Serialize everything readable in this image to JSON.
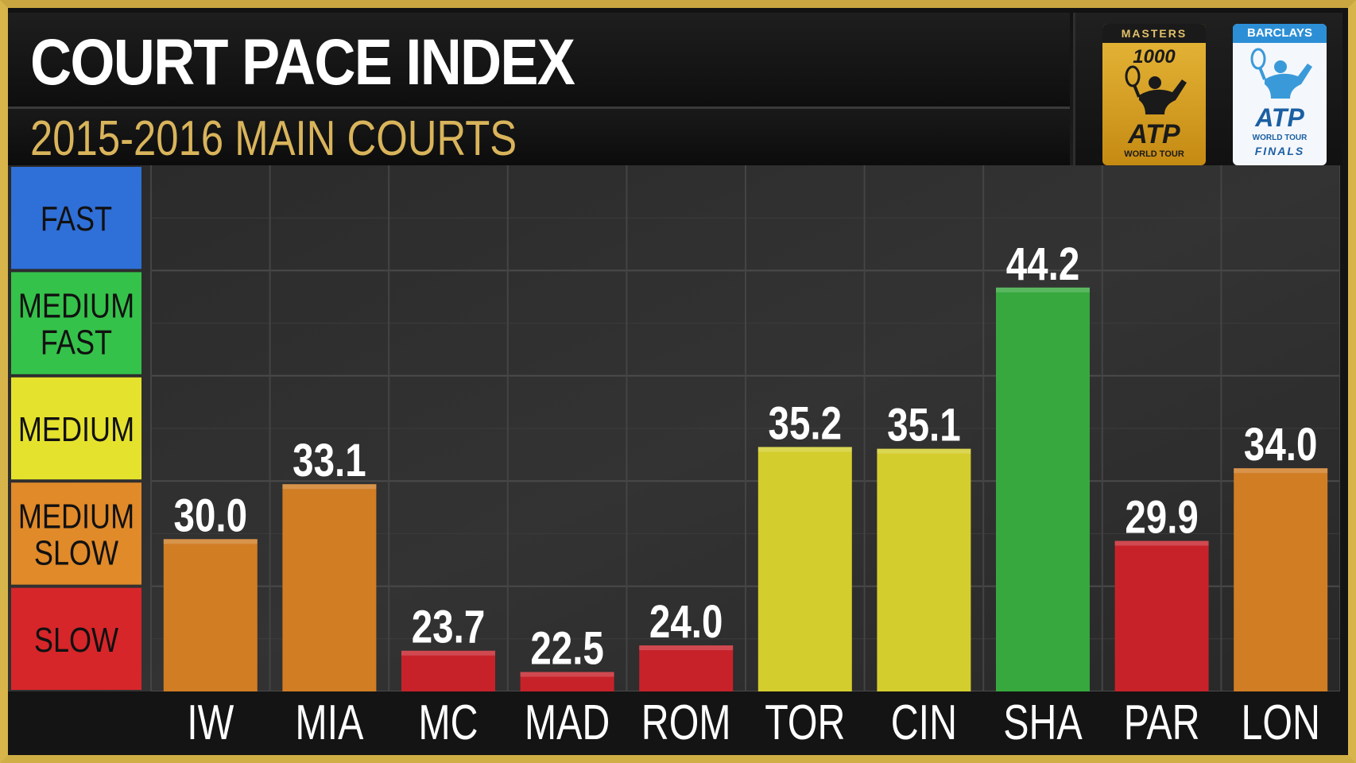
{
  "header": {
    "title": "COURT PACE INDEX",
    "subtitle": "2015-2016 MAIN COURTS"
  },
  "logos": {
    "masters": {
      "top_text": "MASTERS",
      "number": "1000",
      "brand": "ATP",
      "tagline": "WORLD TOUR"
    },
    "finals": {
      "top_text": "BARCLAYS",
      "brand": "ATP",
      "tagline1": "WORLD TOUR",
      "tagline2": "FINALS"
    }
  },
  "legend": [
    {
      "lines": [
        "FAST"
      ],
      "color": "#2f6fd8"
    },
    {
      "lines": [
        "MEDIUM",
        "FAST"
      ],
      "color": "#35c24a"
    },
    {
      "lines": [
        "MEDIUM"
      ],
      "color": "#e5e22e"
    },
    {
      "lines": [
        "MEDIUM",
        "SLOW"
      ],
      "color": "#e08a2a"
    },
    {
      "lines": [
        "SLOW"
      ],
      "color": "#d6262a"
    }
  ],
  "chart_data": {
    "type": "bar",
    "title": "COURT PACE INDEX",
    "subtitle": "2015-2016 MAIN COURTS",
    "categories": [
      "IW",
      "MIA",
      "MC",
      "MAD",
      "ROM",
      "TOR",
      "CIN",
      "SHA",
      "PAR",
      "LON"
    ],
    "values": [
      30.0,
      33.1,
      23.7,
      22.5,
      24.0,
      35.2,
      35.1,
      44.2,
      29.9,
      34.0
    ],
    "value_labels": [
      "30.0",
      "33.1",
      "23.7",
      "22.5",
      "24.0",
      "35.2",
      "35.1",
      "44.2",
      "29.9",
      "34.0"
    ],
    "bar_colors": [
      "#d07d24",
      "#d07d24",
      "#c7222a",
      "#c7222a",
      "#c7222a",
      "#d4cd2e",
      "#d4cd2e",
      "#36a83e",
      "#c7222a",
      "#d07d24"
    ],
    "ylim": [
      21.4,
      51.1
    ],
    "grid": true,
    "legend_position": "left"
  }
}
